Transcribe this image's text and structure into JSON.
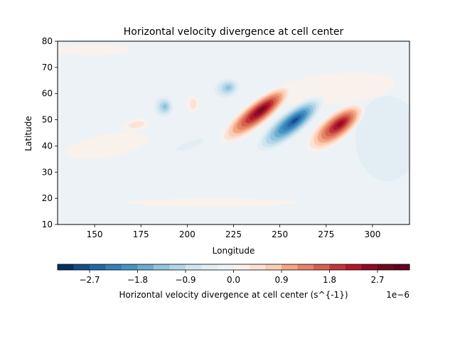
{
  "chart_data": {
    "type": "heatmap",
    "title": "Horizontal velocity divergence at cell center",
    "xlabel": "Longitude",
    "ylabel": "Latitude",
    "xlim": [
      130,
      320
    ],
    "ylim": [
      10,
      80
    ],
    "xticks": [
      150,
      175,
      200,
      225,
      250,
      275,
      300
    ],
    "yticks": [
      10,
      20,
      30,
      40,
      50,
      60,
      70,
      80
    ],
    "grid": false,
    "colorbar": {
      "label": "Horizontal velocity divergence at cell center (s^{-1})",
      "offset_text": "1e−6",
      "orientation": "horizontal",
      "range": [
        -3.3,
        3.3
      ],
      "ticks": [
        -2.7,
        -1.8,
        -0.9,
        0.0,
        0.9,
        1.8,
        2.7
      ],
      "tick_labels": [
        "−2.7",
        "−1.8",
        "−0.9",
        "0.0",
        "0.9",
        "1.8",
        "2.7"
      ],
      "levels": [
        -3.3,
        -3.0,
        -2.7,
        -2.4,
        -2.1,
        -1.8,
        -1.5,
        -1.2,
        -0.9,
        -0.6,
        -0.3,
        0.0,
        0.3,
        0.6,
        0.9,
        1.2,
        1.5,
        1.8,
        2.1,
        2.4,
        2.7,
        3.0,
        3.3
      ],
      "colormap": "RdBu_r",
      "colors": [
        "#053061",
        "#144c87",
        "#2267ac",
        "#3480b9",
        "#4394c3",
        "#6dacd1",
        "#92c5de",
        "#b3d6e8",
        "#d1e5f0",
        "#e3eef4",
        "#edf2f6",
        "#f8f1ec",
        "#fbe2d4",
        "#fbccb4",
        "#f4a582",
        "#e5836a",
        "#d6604d",
        "#c13639",
        "#b2182b",
        "#8c0c25",
        "#6d0a1f",
        "#67001f"
      ]
    },
    "features": [
      {
        "kind": "positive",
        "lon": 280,
        "lat": 47,
        "peak": 2.7
      },
      {
        "kind": "negative",
        "lon": 255,
        "lat": 48,
        "peak": -3.0
      },
      {
        "kind": "positive",
        "lon": 237,
        "lat": 52,
        "peak": 3.0
      },
      {
        "kind": "negative",
        "lon": 221,
        "lat": 62,
        "peak": -1.5
      },
      {
        "kind": "negative",
        "lon": 187,
        "lat": 55,
        "peak": -1.5
      },
      {
        "kind": "positive",
        "lon": 203,
        "lat": 56,
        "peak": 0.6
      },
      {
        "kind": "positive",
        "lon": 172,
        "lat": 48,
        "peak": 0.6
      },
      {
        "kind": "negative",
        "lon": 200,
        "lat": 40,
        "peak": -0.6
      }
    ]
  }
}
